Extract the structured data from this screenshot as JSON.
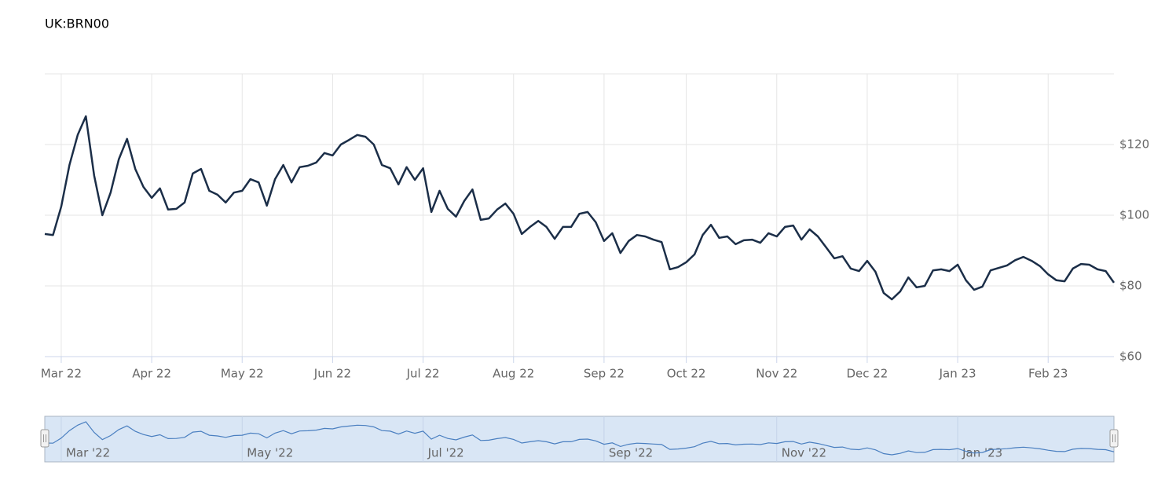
{
  "chart_data": {
    "type": "line",
    "title": "UK:BRN00",
    "color": "#1b2e48",
    "categories": [
      null,
      null,
      "Mar 22",
      null,
      null,
      null,
      null,
      null,
      null,
      null,
      null,
      null,
      null,
      "Apr 22",
      null,
      null,
      null,
      null,
      null,
      null,
      null,
      null,
      null,
      null,
      "May 22",
      null,
      null,
      null,
      null,
      null,
      null,
      null,
      null,
      null,
      null,
      "Jun 22",
      null,
      null,
      null,
      null,
      null,
      null,
      null,
      null,
      null,
      null,
      "Jul 22",
      null,
      null,
      null,
      null,
      null,
      null,
      null,
      null,
      null,
      null,
      "Aug 22",
      null,
      null,
      null,
      null,
      null,
      null,
      null,
      null,
      null,
      null,
      "Sep 22",
      null,
      null,
      null,
      null,
      null,
      null,
      null,
      null,
      null,
      "Oct 22",
      null,
      null,
      null,
      null,
      null,
      null,
      null,
      null,
      null,
      null,
      "Nov 22",
      null,
      null,
      null,
      null,
      null,
      null,
      null,
      null,
      null,
      null,
      "Dec 22",
      null,
      null,
      null,
      null,
      null,
      null,
      null,
      null,
      null,
      null,
      "Jan 23",
      null,
      null,
      null,
      null,
      null,
      null,
      null,
      null,
      null,
      null,
      "Feb 23",
      null,
      null,
      null,
      null,
      null,
      null,
      null,
      null
    ],
    "navigator_categories": [
      null,
      null,
      "Mar '22",
      null,
      null,
      null,
      null,
      null,
      null,
      null,
      null,
      null,
      null,
      null,
      null,
      null,
      null,
      null,
      null,
      null,
      null,
      null,
      null,
      null,
      "May '22",
      null,
      null,
      null,
      null,
      null,
      null,
      null,
      null,
      null,
      null,
      null,
      null,
      null,
      null,
      null,
      null,
      null,
      null,
      null,
      null,
      null,
      "Jul '22",
      null,
      null,
      null,
      null,
      null,
      null,
      null,
      null,
      null,
      null,
      null,
      null,
      null,
      null,
      null,
      null,
      null,
      null,
      null,
      null,
      null,
      "Sep '22",
      null,
      null,
      null,
      null,
      null,
      null,
      null,
      null,
      null,
      null,
      null,
      null,
      null,
      null,
      null,
      null,
      null,
      null,
      null,
      null,
      "Nov '22",
      null,
      null,
      null,
      null,
      null,
      null,
      null,
      null,
      null,
      null,
      null,
      null,
      null,
      null,
      null,
      null,
      null,
      null,
      null,
      null,
      null,
      "Jan '23",
      null,
      null,
      null,
      null,
      null,
      null,
      null,
      null,
      null,
      null,
      null,
      null,
      null,
      null,
      null,
      null,
      null,
      null,
      null
    ],
    "values": [
      94.7,
      94.4,
      102.4,
      114.2,
      122.7,
      128.0,
      111.3,
      100.0,
      106.4,
      115.8,
      121.6,
      113.1,
      108.0,
      104.9,
      107.6,
      101.6,
      101.8,
      103.6,
      111.8,
      113.1,
      106.9,
      105.8,
      103.6,
      106.4,
      106.9,
      110.2,
      109.3,
      102.7,
      110.2,
      114.2,
      109.3,
      113.6,
      114.0,
      114.9,
      117.6,
      116.9,
      120.0,
      121.3,
      122.7,
      122.2,
      120.0,
      114.2,
      113.3,
      108.7,
      113.6,
      110.0,
      113.3,
      100.9,
      106.9,
      101.8,
      99.6,
      104.0,
      107.3,
      98.7,
      99.1,
      101.6,
      103.3,
      100.4,
      94.7,
      96.7,
      98.4,
      96.7,
      93.3,
      96.7,
      96.7,
      100.4,
      100.9,
      98.0,
      92.7,
      94.9,
      89.3,
      92.7,
      94.4,
      94.0,
      93.1,
      92.4,
      84.7,
      85.3,
      86.7,
      88.9,
      94.4,
      97.3,
      93.6,
      94.0,
      91.8,
      92.9,
      93.1,
      92.2,
      94.9,
      94.0,
      96.7,
      97.1,
      93.1,
      96.0,
      94.0,
      90.9,
      87.8,
      88.4,
      84.9,
      84.2,
      87.1,
      84.0,
      78.0,
      76.2,
      78.4,
      82.4,
      79.6,
      80.0,
      84.4,
      84.7,
      84.2,
      86.0,
      81.6,
      78.9,
      79.8,
      84.4,
      85.1,
      85.8,
      87.3,
      88.2,
      87.1,
      85.6,
      83.3,
      81.6,
      81.3,
      84.9,
      86.2,
      86.0,
      84.7,
      84.2,
      80.9
    ],
    "ylim": [
      60,
      140
    ],
    "yticks": [
      {
        "value": 60,
        "label": "$60"
      },
      {
        "value": 80,
        "label": "$80"
      },
      {
        "value": 100,
        "label": "$100"
      },
      {
        "value": 120,
        "label": "$120"
      }
    ],
    "grid": true
  }
}
